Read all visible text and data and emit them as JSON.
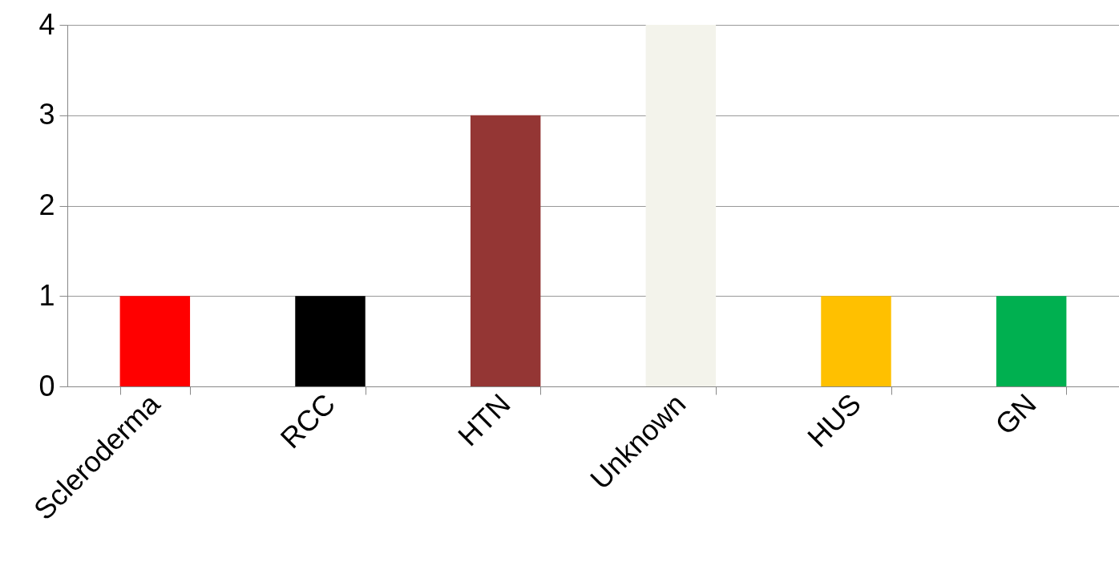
{
  "chart_data": {
    "type": "bar",
    "categories": [
      "Scleroderma",
      "RCC",
      "HTN",
      "Unknown",
      "HUS",
      "GN"
    ],
    "values": [
      1,
      1,
      3,
      4,
      1,
      1
    ],
    "colors": [
      "#ff0000",
      "#000000",
      "#943634",
      "#f3f3eb",
      "#ffc000",
      "#00b050"
    ],
    "ylim": [
      0,
      4
    ],
    "yticks": [
      0,
      1,
      2,
      3,
      4
    ],
    "grid": "y",
    "legend": false
  }
}
